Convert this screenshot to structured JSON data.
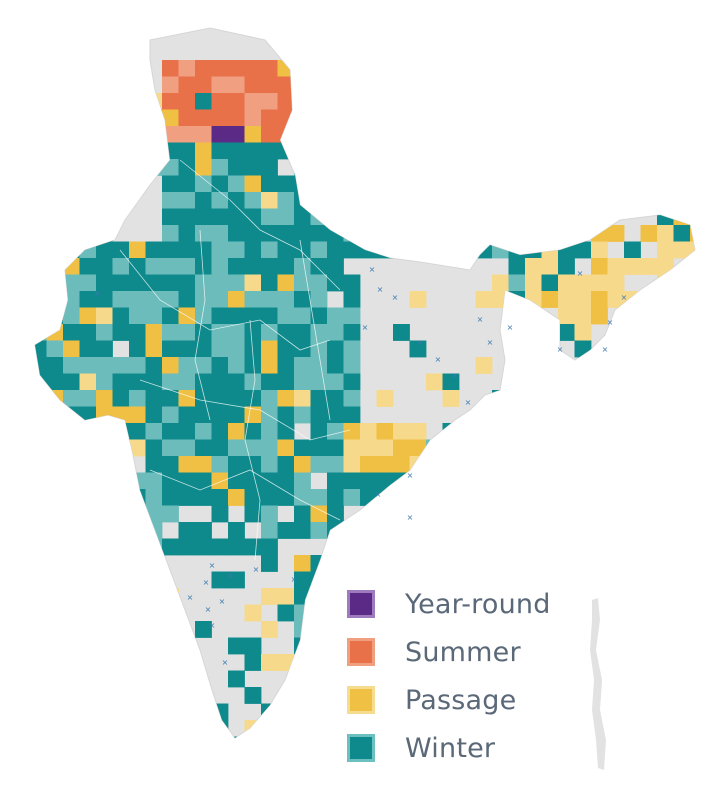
{
  "legend": {
    "items": [
      {
        "key": "year_round",
        "label": "Year-round",
        "color": "#5b2a86",
        "border": "#9d7bbd"
      },
      {
        "key": "summer",
        "label": "Summer",
        "color": "#e8714a",
        "border": "#f0a080"
      },
      {
        "key": "passage",
        "label": "Passage",
        "color": "#f0c044",
        "border": "#f6dc8e"
      },
      {
        "key": "winter",
        "label": "Winter",
        "color": "#0e8a8c",
        "border": "#6cc0c0"
      }
    ]
  },
  "colors": {
    "land": "#e2e2e2",
    "land_shade": "#d6d6d6",
    "outline": "#ffffff",
    "year_round": "#5b2a86",
    "summer": "#e8714a",
    "summer_light": "#f0a080",
    "passage": "#f0c044",
    "passage_light": "#f6d98a",
    "winter": "#0e8a8c",
    "winter_light": "#6cbcbc",
    "cross_marker": "#3a7ab0"
  }
}
